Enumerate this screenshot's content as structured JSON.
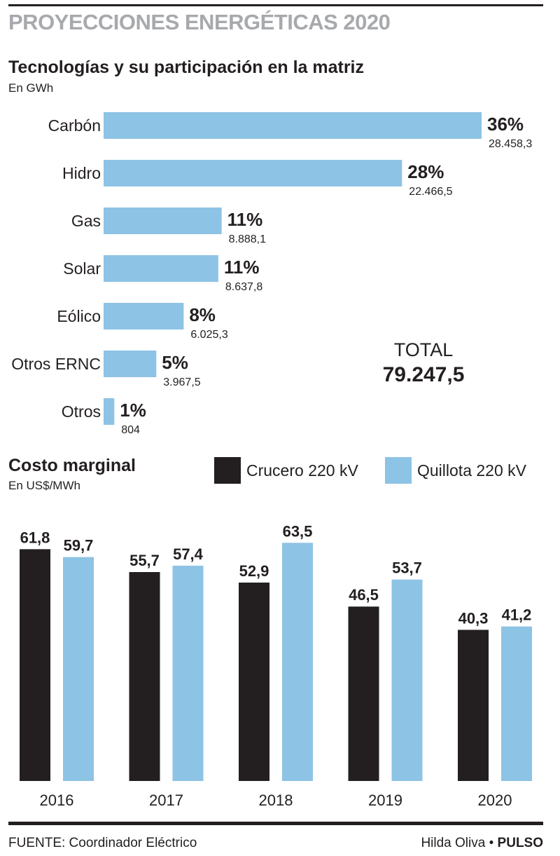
{
  "header": {
    "title": "PROYECCIONES ENERGÉTICAS 2020"
  },
  "footer": {
    "source": "FUENTE: Coordinador Eléctrico",
    "author": "Hilda Oliva",
    "separator": " • ",
    "brand": "PULSO"
  },
  "colors": {
    "title_gray": "#a7a9ac",
    "light_blue": "#8dc3e5",
    "dark": "#231f20"
  },
  "chart_data": [
    {
      "type": "bar",
      "orientation": "horizontal",
      "title": "Tecnologías y su participación en la matriz",
      "subtitle": "En GWh",
      "categories": [
        "Carbón",
        "Hidro",
        "Gas",
        "Solar",
        "Eólico",
        "Otros ERNC",
        "Otros"
      ],
      "values": [
        28458.3,
        22466.5,
        8888.1,
        8637.8,
        6025.3,
        3967.5,
        804
      ],
      "value_labels": [
        "28.458,3",
        "22.466,5",
        "8.888,1",
        "8.637,8",
        "6.025,3",
        "3.967,5",
        "804"
      ],
      "percent_labels": [
        "36%",
        "28%",
        "11%",
        "11%",
        "8%",
        "5%",
        "1%"
      ],
      "total_label": "TOTAL",
      "total_value": "79.247,5",
      "color": "#8dc3e5"
    },
    {
      "type": "bar",
      "title": "Costo marginal",
      "subtitle": "En US$/MWh",
      "categories": [
        "2016",
        "2017",
        "2018",
        "2019",
        "2020"
      ],
      "legend_position": "top-right",
      "ylim": [
        0,
        70
      ],
      "series": [
        {
          "name": "Crucero 220 kV",
          "color": "#231f20",
          "values": [
            61.8,
            55.7,
            52.9,
            46.5,
            40.3
          ],
          "labels": [
            "61,8",
            "55,7",
            "52,9",
            "46,5",
            "40,3"
          ]
        },
        {
          "name": "Quillota 220 kV",
          "color": "#8dc3e5",
          "values": [
            59.7,
            57.4,
            63.5,
            53.7,
            41.2
          ],
          "labels": [
            "59,7",
            "57,4",
            "63,5",
            "53,7",
            "41,2"
          ]
        }
      ]
    }
  ]
}
